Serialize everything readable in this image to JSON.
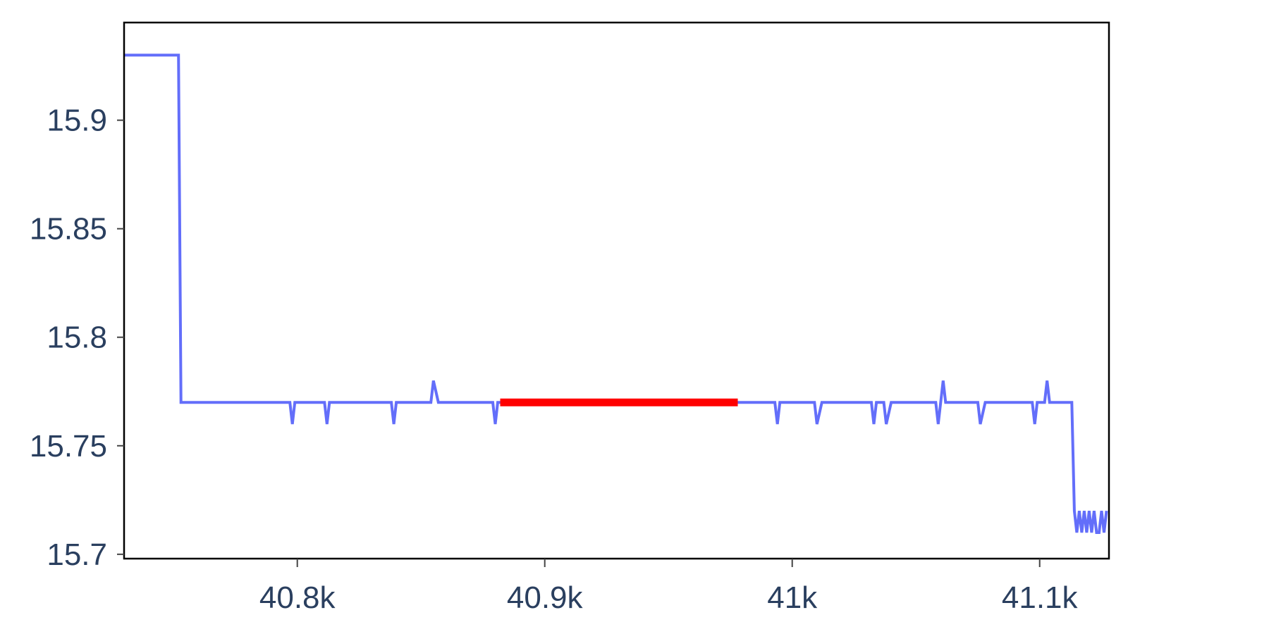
{
  "chart_data": {
    "type": "line",
    "title": "",
    "xlabel": "",
    "ylabel": "",
    "xlim": [
      40730,
      41128
    ],
    "ylim": [
      15.698,
      15.945
    ],
    "x_ticks": [
      40800,
      40900,
      41000,
      41100
    ],
    "x_tick_labels": [
      "40.8k",
      "40.9k",
      "41k",
      "41.1k"
    ],
    "y_ticks": [
      15.7,
      15.75,
      15.8,
      15.85,
      15.9
    ],
    "y_tick_labels": [
      "15.7",
      "15.75",
      "15.8",
      "15.85",
      "15.9"
    ],
    "grid": false,
    "series": [
      {
        "color": "#636efa",
        "x": [
          40730,
          40752,
          40753,
          40797,
          40798,
          40799,
          40811,
          40812,
          40813,
          40838,
          40839,
          40840,
          40854,
          40855,
          40857,
          40879,
          40880,
          40881,
          40993,
          40994,
          40995,
          41009,
          41010,
          41012,
          41032,
          41033,
          41034,
          41037,
          41038,
          41040,
          41058,
          41059,
          41060,
          41061,
          41062,
          41063,
          41075,
          41076,
          41078,
          41097,
          41098,
          41099,
          41102,
          41103,
          41104,
          41113,
          41114,
          41115,
          41116,
          41117,
          41118,
          41119,
          41120,
          41121,
          41122,
          41123,
          41124,
          41125,
          41126,
          41127
        ],
        "y": [
          15.93,
          15.93,
          15.77,
          15.77,
          15.76,
          15.77,
          15.77,
          15.76,
          15.77,
          15.77,
          15.76,
          15.77,
          15.77,
          15.78,
          15.77,
          15.77,
          15.76,
          15.77,
          15.77,
          15.76,
          15.77,
          15.77,
          15.76,
          15.77,
          15.77,
          15.76,
          15.77,
          15.77,
          15.76,
          15.77,
          15.77,
          15.76,
          15.77,
          15.78,
          15.77,
          15.77,
          15.77,
          15.76,
          15.77,
          15.77,
          15.76,
          15.77,
          15.77,
          15.78,
          15.77,
          15.77,
          15.72,
          15.71,
          15.72,
          15.71,
          15.72,
          15.71,
          15.72,
          15.71,
          15.72,
          15.71,
          15.71,
          15.72,
          15.71,
          15.72
        ]
      },
      {
        "color": "#ff0000",
        "x": [
          40882,
          40978
        ],
        "y": [
          15.77,
          15.77
        ]
      }
    ]
  }
}
